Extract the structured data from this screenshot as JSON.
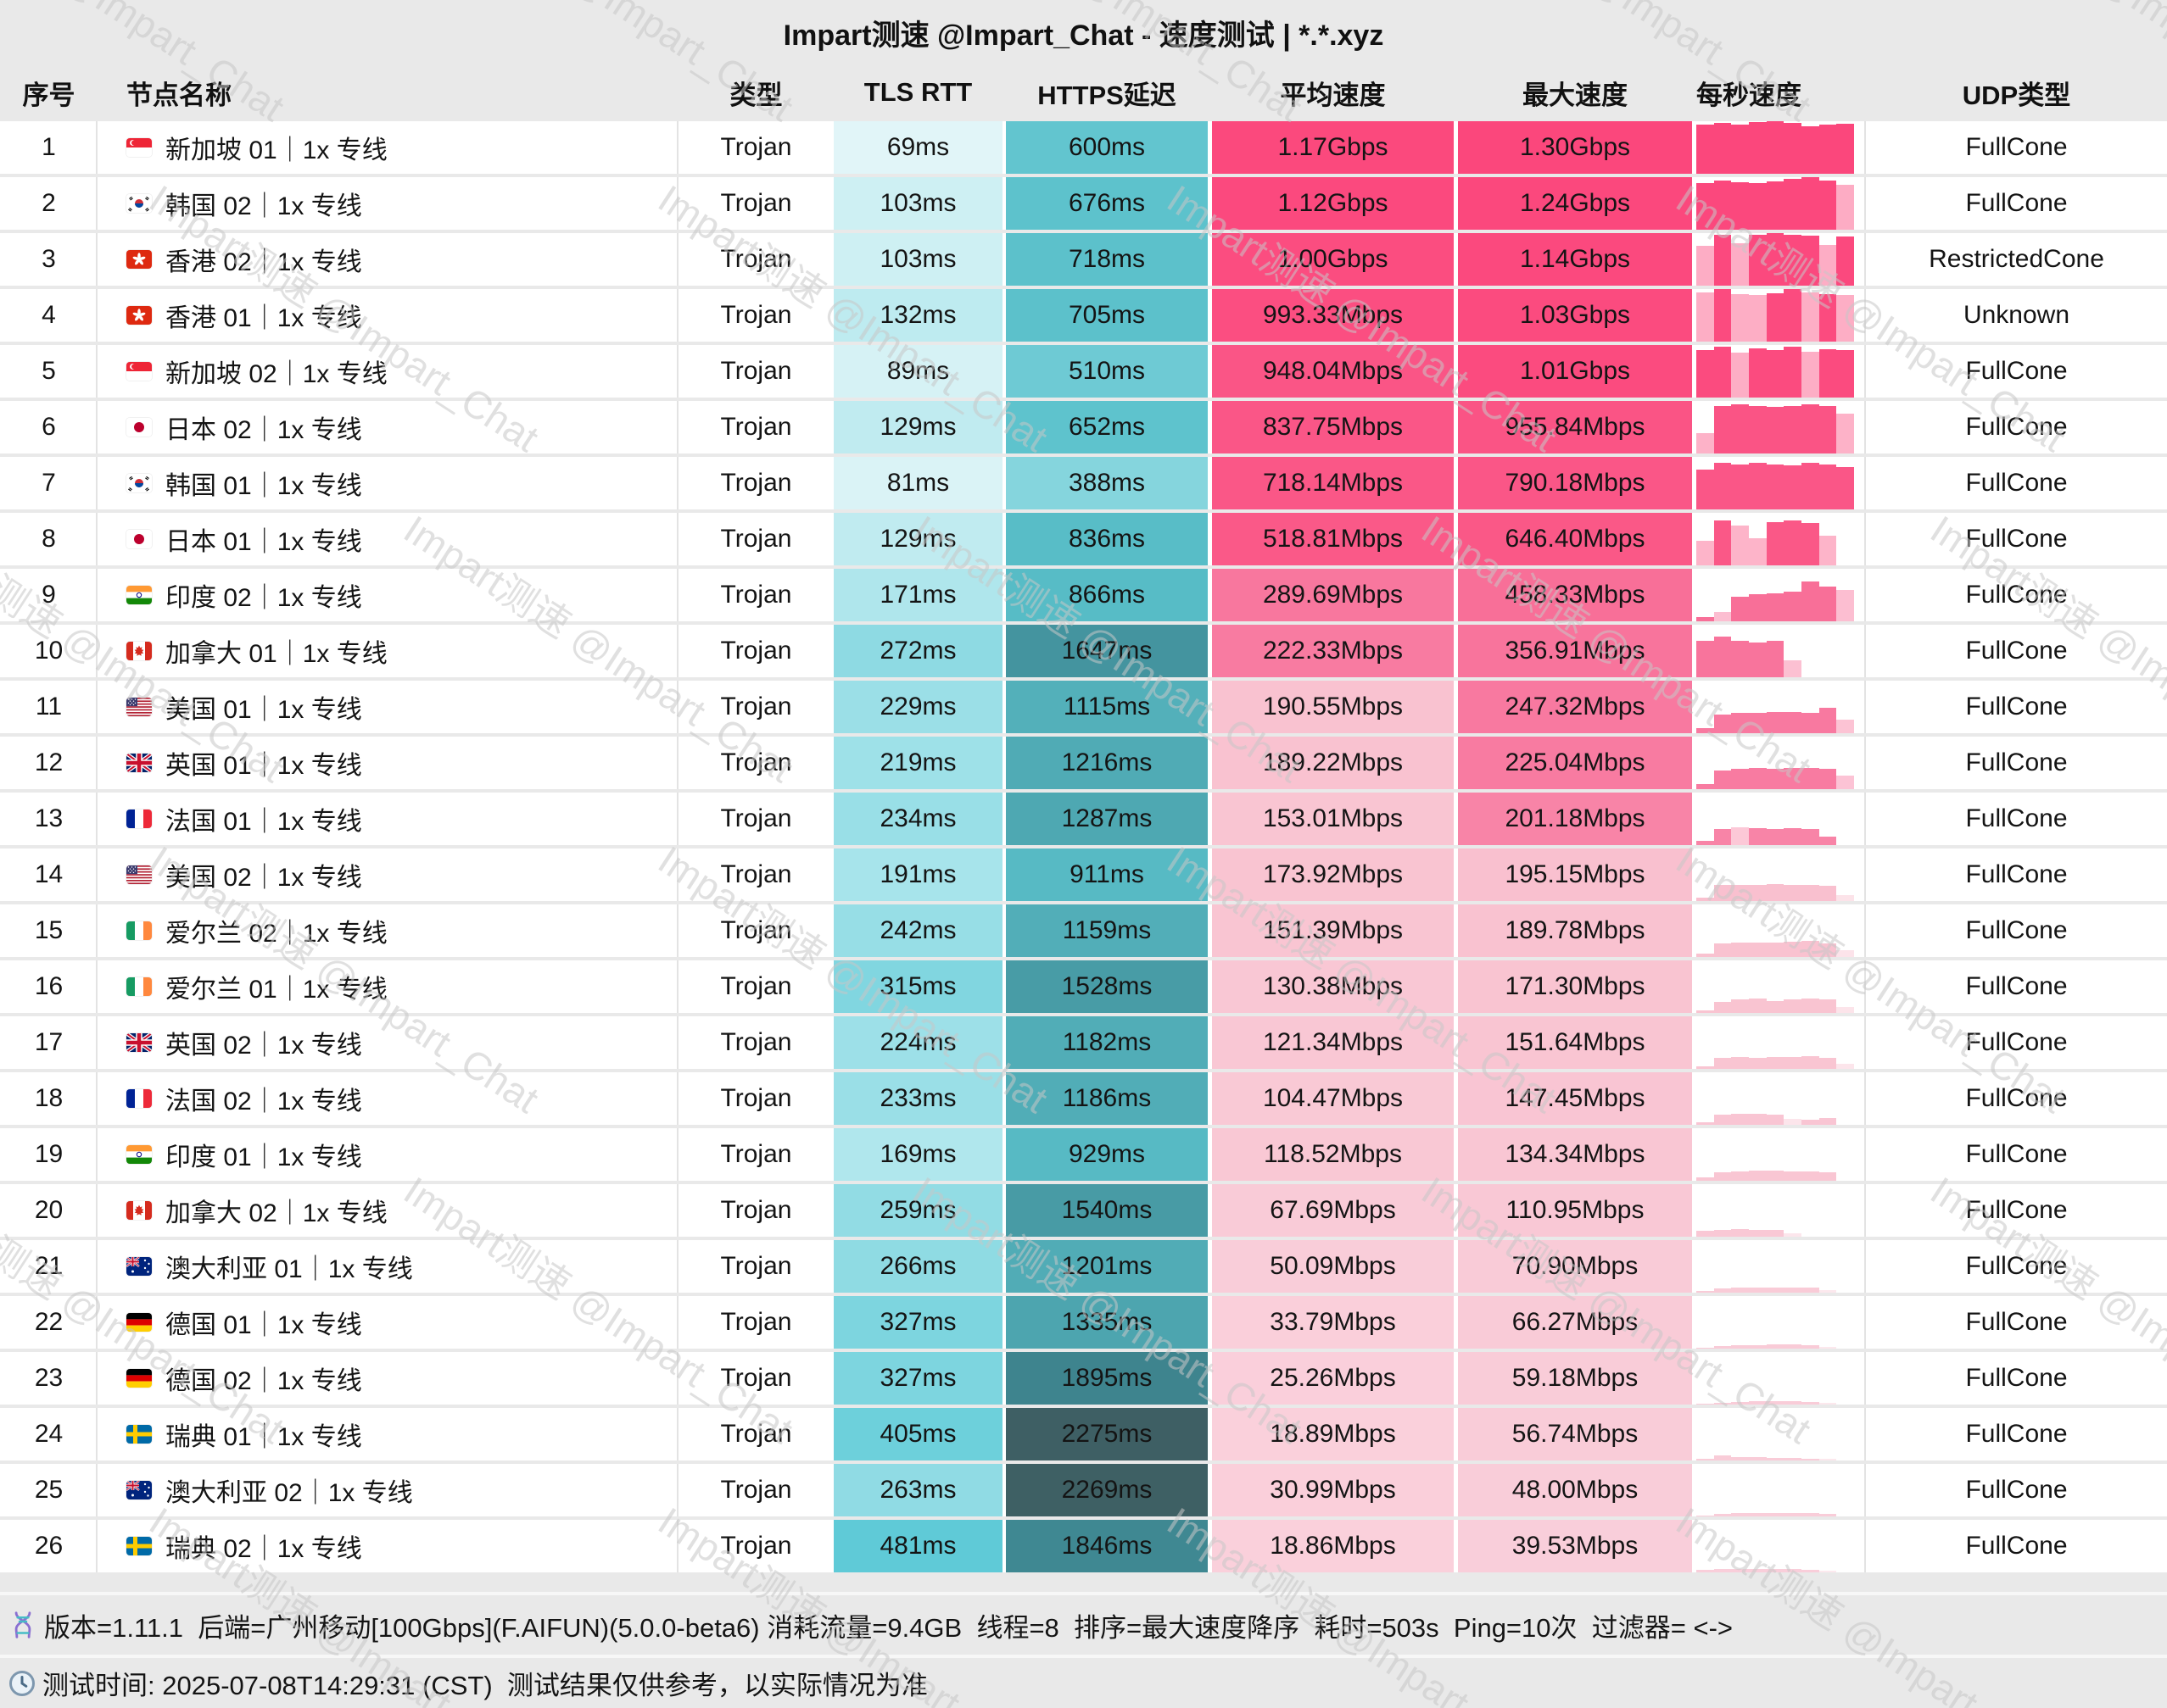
{
  "title": "Impart测速 @Impart_Chat - 速度测试 | *.*.xyz",
  "watermark": "Impart测速 @Impart_Chat",
  "columns": [
    {
      "key": "no",
      "label": "序号"
    },
    {
      "key": "name",
      "label": "节点名称"
    },
    {
      "key": "type",
      "label": "类型"
    },
    {
      "key": "tls",
      "label": "TLS RTT"
    },
    {
      "key": "https",
      "label": "HTTPS延迟"
    },
    {
      "key": "avg",
      "label": "平均速度"
    },
    {
      "key": "max",
      "label": "最大速度"
    },
    {
      "key": "spark",
      "label": "每秒速度"
    },
    {
      "key": "udp",
      "label": "UDP类型"
    }
  ],
  "rows": [
    {
      "no": 1,
      "flag": "sg",
      "name": "新加坡 01｜1x 专线",
      "type": "Trojan",
      "tls": "69ms",
      "https": "600ms",
      "avg": "1.17Gbps",
      "max": "1.30Gbps",
      "udp": "FullCone",
      "bars": [
        0.93,
        0.96,
        0.94,
        0.99,
        1.0,
        0.96,
        0.91,
        0.94,
        0.95
      ]
    },
    {
      "no": 2,
      "flag": "kr",
      "name": "韩国 02｜1x 专线",
      "type": "Trojan",
      "tls": "103ms",
      "https": "676ms",
      "avg": "1.12Gbps",
      "max": "1.24Gbps",
      "udp": "FullCone",
      "bars": [
        0.89,
        0.93,
        0.9,
        0.88,
        0.92,
        0.96,
        1.0,
        0.94,
        -0.86
      ]
    },
    {
      "no": 3,
      "flag": "hk",
      "name": "香港 02｜1x 专线",
      "type": "Trojan",
      "tls": "103ms",
      "https": "718ms",
      "avg": "1.00Gbps",
      "max": "1.14Gbps",
      "udp": "RestrictedCone",
      "bars": [
        -0.76,
        0.96,
        -0.8,
        0.97,
        1.0,
        0.97,
        0.95,
        -0.78,
        0.93
      ]
    },
    {
      "no": 4,
      "flag": "hk",
      "name": "香港 01｜1x 专线",
      "type": "Trojan",
      "tls": "132ms",
      "https": "705ms",
      "avg": "993.33Mbps",
      "max": "1.03Gbps",
      "udp": "Unknown",
      "bars": [
        -0.93,
        1.0,
        -0.9,
        -0.88,
        0.92,
        1.0,
        -0.93,
        0.9,
        -0.88
      ]
    },
    {
      "no": 5,
      "flag": "sg",
      "name": "新加坡 02｜1x 专线",
      "type": "Trojan",
      "tls": "89ms",
      "https": "510ms",
      "avg": "948.04Mbps",
      "max": "1.01Gbps",
      "udp": "FullCone",
      "bars": [
        0.9,
        0.97,
        -0.86,
        0.93,
        0.91,
        0.97,
        -0.87,
        0.92,
        0.9
      ]
    },
    {
      "no": 6,
      "flag": "jp",
      "name": "日本 02｜1x 专线",
      "type": "Trojan",
      "tls": "129ms",
      "https": "652ms",
      "avg": "837.75Mbps",
      "max": "955.84Mbps",
      "udp": "FullCone",
      "bars": [
        -0.38,
        0.9,
        0.93,
        0.91,
        0.89,
        0.91,
        0.93,
        0.9,
        -0.76
      ]
    },
    {
      "no": 7,
      "flag": "kr",
      "name": "韩国 01｜1x 专线",
      "type": "Trojan",
      "tls": "81ms",
      "https": "388ms",
      "avg": "718.14Mbps",
      "max": "790.18Mbps",
      "udp": "FullCone",
      "bars": [
        0.76,
        0.89,
        0.86,
        0.88,
        0.86,
        0.84,
        0.88,
        0.86,
        0.8
      ]
    },
    {
      "no": 8,
      "flag": "jp",
      "name": "日本 01｜1x 专线",
      "type": "Trojan",
      "tls": "129ms",
      "https": "836ms",
      "avg": "518.81Mbps",
      "max": "646.40Mbps",
      "udp": "FullCone",
      "bars": [
        -0.46,
        0.86,
        -0.76,
        -0.52,
        0.82,
        0.86,
        0.81,
        -0.56,
        0
      ]
    },
    {
      "no": 9,
      "flag": "in",
      "name": "印度 02｜1x 专线",
      "type": "Trojan",
      "tls": "171ms",
      "https": "866ms",
      "avg": "289.69Mbps",
      "max": "458.33Mbps",
      "udp": "FullCone",
      "bars": [
        0.08,
        -0.18,
        0.46,
        0.52,
        0.54,
        0.56,
        0.76,
        0.66,
        -0.6
      ]
    },
    {
      "no": 10,
      "flag": "ca",
      "name": "加拿大 01｜1x 专线",
      "type": "Trojan",
      "tls": "272ms",
      "https": "1647ms",
      "avg": "222.33Mbps",
      "max": "356.91Mbps",
      "udp": "FullCone",
      "bars": [
        0.7,
        0.77,
        0.7,
        0.66,
        0.7,
        -0.32,
        0,
        0,
        0
      ]
    },
    {
      "no": 11,
      "flag": "us",
      "name": "美国 01｜1x 专线",
      "type": "Trojan",
      "tls": "229ms",
      "https": "1115ms",
      "avg": "190.55Mbps",
      "max": "247.32Mbps",
      "udp": "FullCone",
      "bars": [
        0.1,
        0.36,
        0.39,
        0.39,
        0.41,
        0.41,
        0.39,
        0.49,
        -0.26
      ]
    },
    {
      "no": 12,
      "flag": "gb",
      "name": "英国 01｜1x 专线",
      "type": "Trojan",
      "tls": "219ms",
      "https": "1216ms",
      "avg": "189.22Mbps",
      "max": "225.04Mbps",
      "udp": "FullCone",
      "bars": [
        0.1,
        0.36,
        0.38,
        0.4,
        0.39,
        0.41,
        0.41,
        0.39,
        -0.26
      ]
    },
    {
      "no": 13,
      "flag": "fr",
      "name": "法国 01｜1x 专线",
      "type": "Trojan",
      "tls": "234ms",
      "https": "1287ms",
      "avg": "153.01Mbps",
      "max": "201.18Mbps",
      "udp": "FullCone",
      "bars": [
        0.08,
        0.31,
        -0.34,
        0.33,
        0.31,
        0.33,
        0.31,
        0.16,
        0
      ]
    },
    {
      "no": 14,
      "flag": "us",
      "name": "美国 02｜1x 专线",
      "type": "Trojan",
      "tls": "191ms",
      "https": "911ms",
      "avg": "173.92Mbps",
      "max": "195.15Mbps",
      "udp": "FullCone",
      "bars": [
        0.07,
        0.31,
        0.31,
        0.31,
        0.33,
        0.31,
        0.31,
        0.29,
        -0.11
      ]
    },
    {
      "no": 15,
      "flag": "ie",
      "name": "爱尔兰 02｜1x 专线",
      "type": "Trojan",
      "tls": "242ms",
      "https": "1159ms",
      "avg": "151.39Mbps",
      "max": "189.78Mbps",
      "udp": "FullCone",
      "bars": [
        0.06,
        0.26,
        0.28,
        0.28,
        0.28,
        0.29,
        0.31,
        0.26,
        -0.13
      ]
    },
    {
      "no": 16,
      "flag": "ie",
      "name": "爱尔兰 01｜1x 专线",
      "type": "Trojan",
      "tls": "315ms",
      "https": "1528ms",
      "avg": "130.38Mbps",
      "max": "171.30Mbps",
      "udp": "FullCone",
      "bars": [
        0.05,
        0.21,
        0.26,
        0.28,
        0.23,
        0.26,
        0.28,
        0.26,
        -0.11
      ]
    },
    {
      "no": 17,
      "flag": "gb",
      "name": "英国 02｜1x 专线",
      "type": "Trojan",
      "tls": "224ms",
      "https": "1182ms",
      "avg": "121.34Mbps",
      "max": "151.64Mbps",
      "udp": "FullCone",
      "bars": [
        0.05,
        0.21,
        0.23,
        0.21,
        0.23,
        0.23,
        0.24,
        0.21,
        -0.1
      ]
    },
    {
      "no": 18,
      "flag": "fr",
      "name": "法国 02｜1x 专线",
      "type": "Trojan",
      "tls": "233ms",
      "https": "1186ms",
      "avg": "104.47Mbps",
      "max": "147.45Mbps",
      "udp": "FullCone",
      "bars": [
        0.05,
        0.19,
        0.21,
        0.21,
        0.19,
        -0.11,
        0.09,
        0.13,
        0
      ]
    },
    {
      "no": 19,
      "flag": "in",
      "name": "印度 01｜1x 专线",
      "type": "Trojan",
      "tls": "169ms",
      "https": "929ms",
      "avg": "118.52Mbps",
      "max": "134.34Mbps",
      "udp": "FullCone",
      "bars": [
        0.06,
        0.16,
        0.18,
        0.19,
        0.19,
        0.18,
        0.18,
        0.16,
        0
      ]
    },
    {
      "no": 20,
      "flag": "ca",
      "name": "加拿大 02｜1x 专线",
      "type": "Trojan",
      "tls": "259ms",
      "https": "1540ms",
      "avg": "67.69Mbps",
      "max": "110.95Mbps",
      "udp": "FullCone",
      "bars": [
        0.11,
        0.13,
        0.14,
        0.13,
        0.13,
        -0.06,
        0,
        0,
        0
      ]
    },
    {
      "no": 21,
      "flag": "au",
      "name": "澳大利亚 01｜1x 专线",
      "type": "Trojan",
      "tls": "266ms",
      "https": "1201ms",
      "avg": "50.09Mbps",
      "max": "70.90Mbps",
      "udp": "FullCone",
      "bars": [
        0.03,
        0.08,
        0.09,
        0.1,
        0.09,
        0.09,
        0.09,
        -0.05,
        0
      ]
    },
    {
      "no": 22,
      "flag": "de",
      "name": "德国 01｜1x 专线",
      "type": "Trojan",
      "tls": "327ms",
      "https": "1335ms",
      "avg": "33.79Mbps",
      "max": "66.27Mbps",
      "udp": "FullCone",
      "bars": [
        0.02,
        0.05,
        0.06,
        0.07,
        0.08,
        0.08,
        0.07,
        -0.04,
        0
      ]
    },
    {
      "no": 23,
      "flag": "de",
      "name": "德国 02｜1x 专线",
      "type": "Trojan",
      "tls": "327ms",
      "https": "1895ms",
      "avg": "25.26Mbps",
      "max": "59.18Mbps",
      "udp": "FullCone",
      "bars": [
        0.02,
        0.04,
        0.05,
        0.07,
        0.06,
        0.06,
        0.05,
        -0.03,
        0
      ]
    },
    {
      "no": 24,
      "flag": "se",
      "name": "瑞典 01｜1x 专线",
      "type": "Trojan",
      "tls": "405ms",
      "https": "2275ms",
      "avg": "18.89Mbps",
      "max": "56.74Mbps",
      "udp": "FullCone",
      "bars": [
        0.04,
        0.09,
        0.07,
        0.06,
        0.05,
        0.05,
        0.04,
        -0.03,
        0
      ]
    },
    {
      "no": 25,
      "flag": "au",
      "name": "澳大利亚 02｜1x 专线",
      "type": "Trojan",
      "tls": "263ms",
      "https": "2269ms",
      "avg": "30.99Mbps",
      "max": "48.00Mbps",
      "udp": "FullCone",
      "bars": [
        0.02,
        0.05,
        0.06,
        0.07,
        0.07,
        0.06,
        0.06,
        0.05,
        0
      ]
    },
    {
      "no": 26,
      "flag": "se",
      "name": "瑞典 02｜1x 专线",
      "type": "Trojan",
      "tls": "481ms",
      "https": "1846ms",
      "avg": "18.86Mbps",
      "max": "39.53Mbps",
      "udp": "FullCone",
      "bars": [
        0.05,
        0.07,
        0.07,
        0.06,
        0.06,
        0.06,
        0.05,
        -0.04,
        0
      ]
    }
  ],
  "footer": {
    "line1_icon": "dna-icon",
    "line1": "版本=1.11.1  后端=广州移动[100Gbps](F.AIFUN)(5.0.0-beta6) 消耗流量=9.4GB  线程=8  排序=最大速度降序  耗时=503s  Ping=10次  过滤器= <->",
    "line2_icon": "clock-icon",
    "line2": "测试时间: 2025-07-08T14:29:31 (CST)  测试结果仅供参考，以实际情况为准"
  },
  "colors": {
    "page_bg": "#E9E9E9",
    "row_bg": "#FFFFFF",
    "tls_scale": [
      [
        60,
        "#E6F7F9"
      ],
      [
        130,
        "#BFEBF0"
      ],
      [
        200,
        "#A4E3EA"
      ],
      [
        280,
        "#8BD9E2"
      ],
      [
        340,
        "#79D4DE"
      ],
      [
        500,
        "#5CC9D6"
      ]
    ],
    "https_scale": [
      [
        380,
        "#86D6DE"
      ],
      [
        520,
        "#6CC9D3"
      ],
      [
        620,
        "#5FC4CE"
      ],
      [
        740,
        "#5BC0CA"
      ],
      [
        880,
        "#57BBC5"
      ],
      [
        960,
        "#57B9C3"
      ],
      [
        1160,
        "#52AEB8"
      ],
      [
        1300,
        "#4EA7B1"
      ],
      [
        1560,
        "#479AA4"
      ],
      [
        1660,
        "#43939E"
      ],
      [
        1860,
        "#3F8791"
      ],
      [
        1900,
        "#3E838D"
      ],
      [
        2280,
        "#3E5F63"
      ]
    ],
    "speed_scale": [
      [
        0,
        "#FAD2DD"
      ],
      [
        70,
        "#F9CBD7"
      ],
      [
        195,
        "#F9C2D0"
      ],
      [
        202,
        "#F87CA2"
      ],
      [
        300,
        "#F8769E"
      ],
      [
        460,
        "#F86F98"
      ],
      [
        520,
        "#FA5988"
      ],
      [
        950,
        "#FA5586"
      ],
      [
        1010,
        "#FB4B7F"
      ],
      [
        1300,
        "#FB477C"
      ]
    ]
  }
}
